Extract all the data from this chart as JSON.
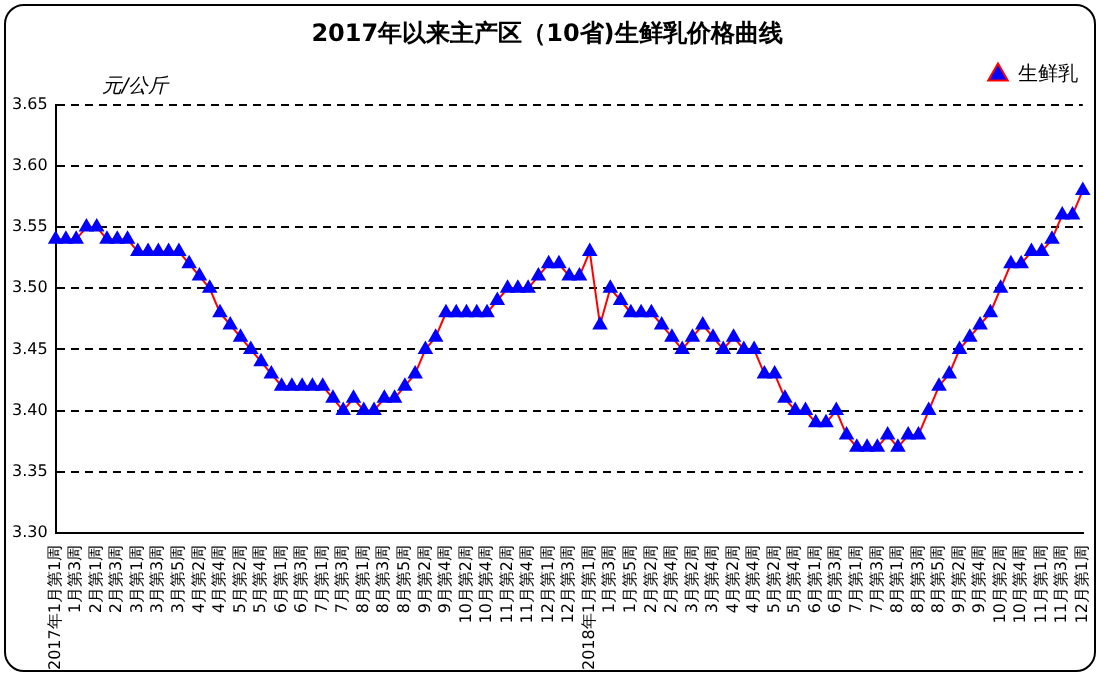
{
  "chart_data": {
    "type": "line",
    "title": "2017年以来主产区（10省)生鲜乳价格曲线",
    "ylabel": "元/公斤",
    "categories": [
      "2017年1月第1周",
      null,
      "1月第3周",
      null,
      "2月第1周",
      null,
      "2月第3周",
      null,
      "3月第1周",
      null,
      "3月第3周",
      null,
      "3月第5周",
      null,
      "4月第2周",
      null,
      "4月第4周",
      null,
      "5月第2周",
      null,
      "5月第4周",
      null,
      "6月第1周",
      null,
      "6月第3周",
      null,
      "7月第1周",
      null,
      "7月第3周",
      null,
      "8月第1周",
      null,
      "8月第3周",
      null,
      "8月第5周",
      null,
      "9月第2周",
      null,
      "9月第4周",
      null,
      "10月第2周",
      null,
      "10月第4周",
      null,
      "11月第2周",
      null,
      "11月第4周",
      null,
      "12月第1周",
      null,
      "12月第3周",
      null,
      "2018年1月第1周",
      null,
      "1月第3周",
      null,
      "1月第5周",
      null,
      "2月第2周",
      null,
      "2月第4周",
      null,
      "3月第2周",
      null,
      "3月第4周",
      null,
      "4月第2周",
      null,
      "4月第4周",
      null,
      "5月第2周",
      null,
      "5月第4周",
      null,
      "6月第1周",
      null,
      "6月第3周",
      null,
      "7月第1周",
      null,
      "7月第3周",
      null,
      "8月第1周",
      null,
      "8月第3周",
      null,
      "8月第5周",
      null,
      "9月第2周",
      null,
      "9月第4周",
      null,
      "10月第2周",
      null,
      "10月第4周",
      null,
      "11月第1周",
      null,
      "11月第3周",
      null,
      "12月第1周"
    ],
    "series": [
      {
        "name": "生鲜乳",
        "color": "#ff0000",
        "colors": [
          "#0000ff",
          "#0000ff",
          "#0000ff",
          "#0000ff",
          "#0000ff",
          "#0000ff",
          "#0000ff",
          "#0000ff",
          "#0000ff",
          "#0000ff",
          "#0000ff",
          "#0000ff",
          "#0000ff",
          "#0000ff",
          "#0000ff",
          "#0000ff",
          "#0000ff",
          "#0000ff",
          "#0000ff",
          "#0000ff",
          "#0000ff",
          "#0000ff",
          "#0000ff",
          "#0000ff",
          "#0000ff",
          "#0000ff",
          "#0000ff",
          "#0000ff",
          "#0000ff",
          "#0000ff",
          "#0000ff",
          "#0000ff",
          "#0000ff",
          "#0000ff",
          "#0000ff",
          "#0000ff",
          "#0000ff",
          "#0000ff",
          "#0000ff",
          "#0000ff",
          "#0000ff",
          "#0000ff",
          "#0000ff",
          "#0000ff",
          "#0000ff",
          "#0000ff",
          "#0000ff",
          "#0000ff",
          "#0000ff",
          "#0000ff",
          "#0000ff",
          "#0000ff",
          "#0000ff",
          "#0000ff",
          "#0000ff",
          "#0000ff",
          "#0000ff",
          "#0000ff",
          "#0000ff",
          "#0000ff",
          "#0000ff",
          "#0000ff",
          "#0000ff",
          "#0000ff",
          "#0000ff",
          "#0000ff",
          "#0000ff",
          "#0000ff",
          "#0000ff",
          "#0000ff",
          "#0000ff",
          "#0000ff",
          "#0000ff",
          "#0000ff",
          "#0000ff",
          "#0000ff",
          "#0000ff",
          "#0000ff",
          "#0000ff",
          "#0000ff",
          "#0000ff",
          "#0000ff",
          "#0000ff",
          "#0000ff",
          "#0000ff",
          "#0000ff",
          "#0000ff",
          "#0000ff",
          "#0000ff",
          "#0000ff",
          "#0000ff",
          "#0000ff",
          "#0000ff",
          "#0000ff",
          "#0000ff",
          "#0000ff",
          "#0000ff",
          "#0000ff",
          "#0000ff",
          "#0000ff",
          "#0000ff"
        ],
        "values": [
          3.54,
          3.54,
          3.54,
          3.55,
          3.55,
          3.54,
          3.54,
          3.54,
          3.53,
          3.53,
          3.53,
          3.53,
          3.53,
          3.52,
          3.51,
          3.5,
          3.48,
          3.47,
          3.46,
          3.45,
          3.44,
          3.43,
          3.42,
          3.42,
          3.42,
          3.42,
          3.42,
          3.41,
          3.4,
          3.41,
          3.4,
          3.4,
          3.41,
          3.41,
          3.42,
          3.43,
          3.45,
          3.46,
          3.48,
          3.48,
          3.48,
          3.48,
          3.48,
          3.49,
          3.5,
          3.5,
          3.5,
          3.51,
          3.52,
          3.52,
          3.51,
          3.51,
          3.53,
          3.47,
          3.5,
          3.49,
          3.48,
          3.48,
          3.48,
          3.47,
          3.46,
          3.45,
          3.46,
          3.47,
          3.46,
          3.45,
          3.46,
          3.45,
          3.45,
          3.43,
          3.43,
          3.41,
          3.4,
          3.4,
          3.39,
          3.39,
          3.4,
          3.38,
          3.37,
          3.37,
          3.37,
          3.38,
          3.37,
          3.38,
          3.38,
          3.4,
          3.42,
          3.43,
          3.45,
          3.46,
          3.47,
          3.48,
          3.5,
          3.52,
          3.52,
          3.53,
          3.53,
          3.54,
          3.56,
          3.56,
          3.58
        ]
      }
    ],
    "ylim": [
      3.3,
      3.65
    ],
    "yticks": [
      {
        "value": 3.3,
        "label": "3.30"
      },
      {
        "value": 3.35,
        "label": "3.35"
      },
      {
        "value": 3.4,
        "label": "3.40"
      },
      {
        "value": 3.45,
        "label": "3.45"
      },
      {
        "value": 3.5,
        "label": "3.50"
      },
      {
        "value": 3.55,
        "label": "3.55"
      },
      {
        "value": 3.6,
        "label": "3.60"
      },
      {
        "value": 3.65,
        "label": "3.65"
      }
    ],
    "grid": "y",
    "legend": "top right",
    "marker": "triangle",
    "line_style": "solid"
  }
}
